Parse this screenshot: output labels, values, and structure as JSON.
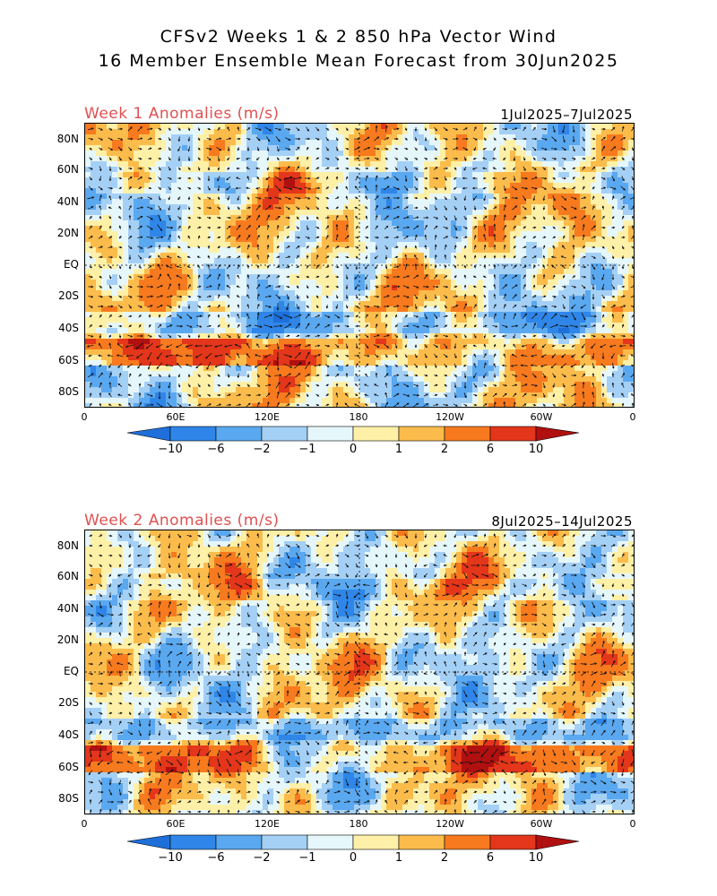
{
  "title_line1": "CFSv2 Weeks 1 & 2 850 hPa Vector Wind",
  "title_line2": "16 Member Ensemble Mean Forecast from 30Jun2025",
  "panels": [
    {
      "label": "Week 1 Anomalies (m/s)",
      "dates": "1Jul2025–7Jul2025"
    },
    {
      "label": "Week 2 Anomalies (m/s)",
      "dates": "8Jul2025–14Jul2025"
    }
  ],
  "lat_ticks": [
    "80N",
    "60N",
    "40N",
    "20N",
    "EQ",
    "20S",
    "40S",
    "60S",
    "80S"
  ],
  "lon_ticks": [
    "0",
    "60E",
    "120E",
    "180",
    "120W",
    "60W",
    "0"
  ],
  "colorbar": {
    "labels": [
      "−10",
      "−6",
      "−2",
      "−1",
      "0",
      "1",
      "2",
      "6",
      "10"
    ],
    "colors": [
      "#1e6fd9",
      "#2f86e8",
      "#5aa8f0",
      "#a5d0f6",
      "#e6f7fc",
      "#fff0a8",
      "#fbbc4c",
      "#f77a1e",
      "#e3361a",
      "#b01010"
    ],
    "end_low": "#1e6fd9",
    "end_high": "#b01010"
  }
}
